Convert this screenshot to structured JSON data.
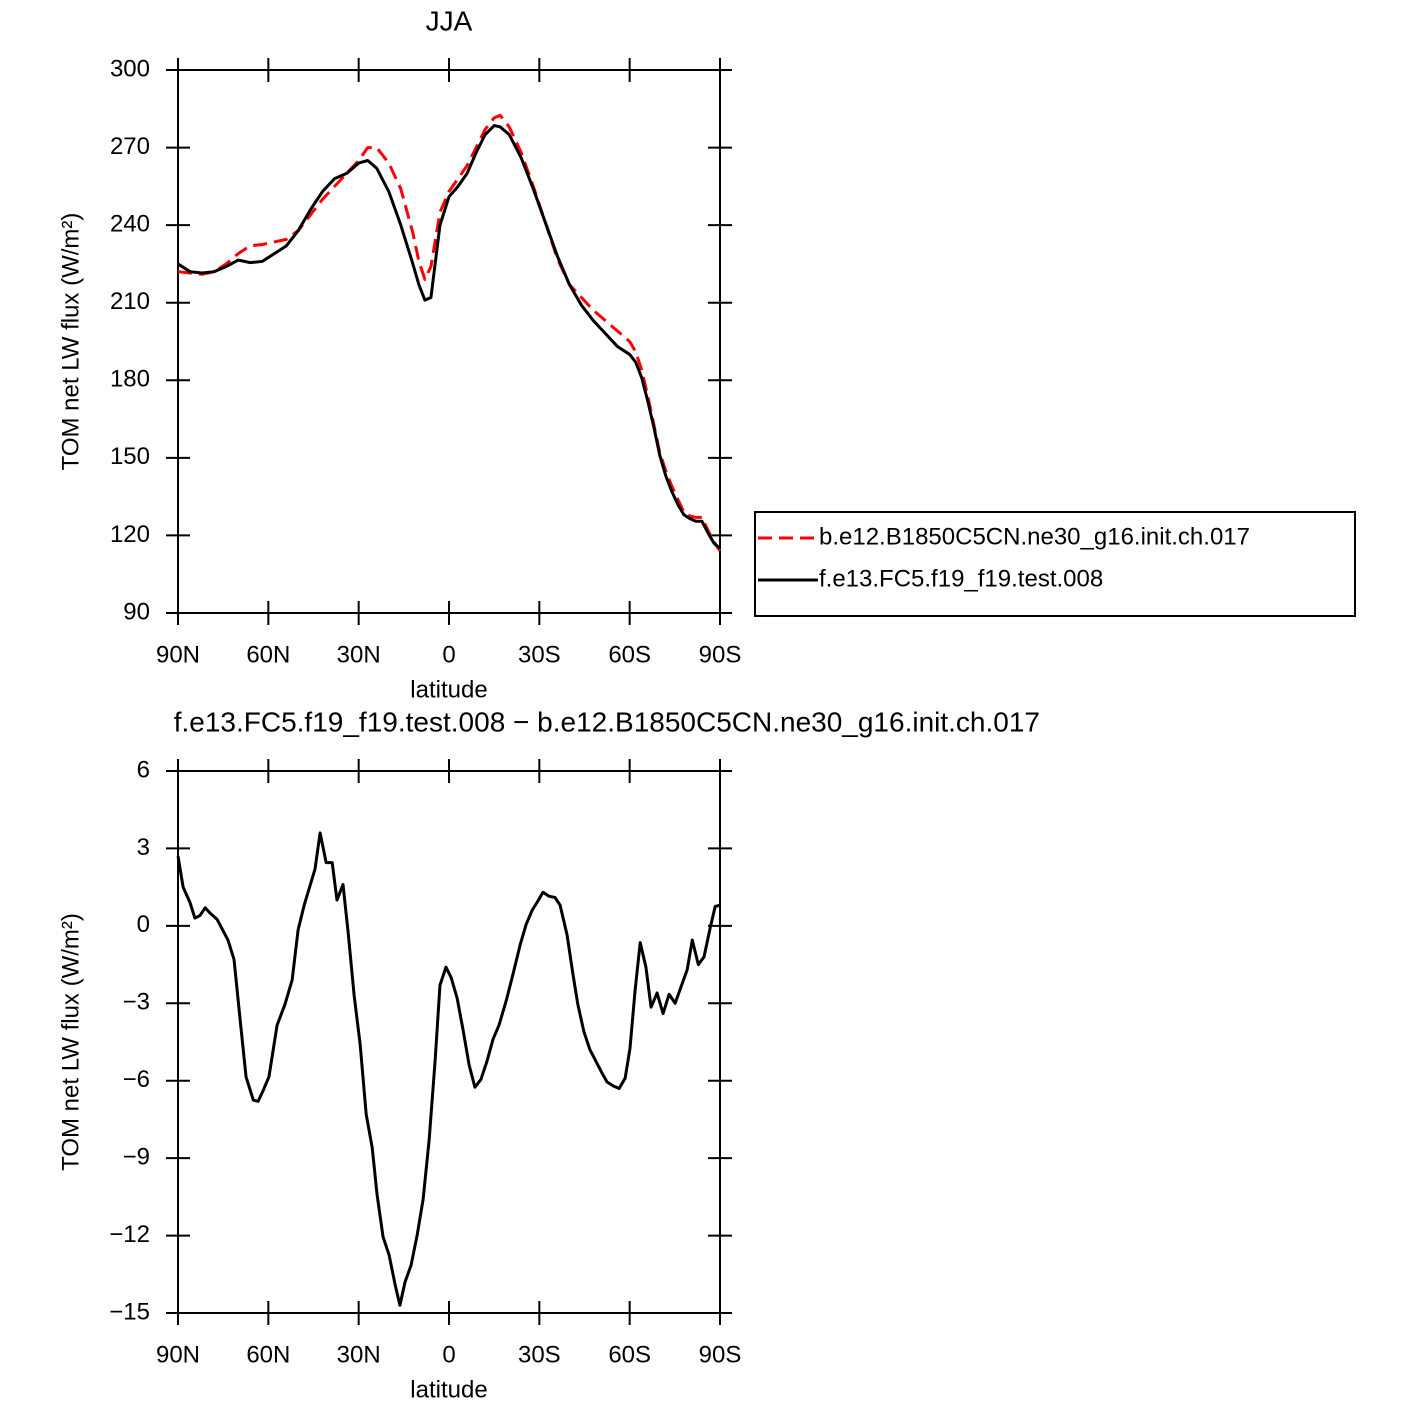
{
  "chart_data": [
    {
      "type": "line",
      "title": "JJA",
      "xlabel": "latitude",
      "ylabel": "TOM net LW flux (W/m²)",
      "x": [
        90,
        86,
        82,
        78,
        74,
        70,
        66,
        62,
        58,
        54,
        50,
        46,
        42,
        38,
        34,
        30,
        27,
        24,
        20,
        16,
        12,
        10,
        8,
        6,
        3,
        0,
        -3,
        -6,
        -9,
        -12,
        -15,
        -17,
        -20,
        -24,
        -28,
        -32,
        -36,
        -40,
        -44,
        -48,
        -52,
        -56,
        -60,
        -62,
        -64,
        -66,
        -68,
        -70,
        -72,
        -74,
        -76,
        -78,
        -80,
        -82,
        -84,
        -86,
        -88,
        -90
      ],
      "series": [
        {
          "name": "b.e12.B1850C5CN.ne30_g16.init.ch.017",
          "color": "#ff0000",
          "line_style": "dashed",
          "values": [
            222,
            221.5,
            221,
            222,
            225,
            229,
            232,
            232.5,
            233.5,
            234.5,
            238,
            244,
            250,
            255,
            260,
            265,
            270,
            270,
            264,
            254,
            237,
            226,
            219,
            224,
            245,
            253,
            258,
            263,
            270,
            277,
            281.5,
            282.5,
            278,
            268,
            255,
            241,
            227,
            217,
            212,
            207,
            203,
            199,
            195,
            191,
            184,
            174,
            163,
            152,
            145,
            139,
            134,
            129,
            127.5,
            127,
            127,
            122,
            117.5,
            114
          ]
        },
        {
          "name": "f.e13.FC5.f19_f19.test.008",
          "color": "#000000",
          "line_style": "solid",
          "values": [
            225,
            222,
            221.5,
            222,
            224,
            226.5,
            225.5,
            226,
            229,
            232,
            238,
            246,
            253,
            258,
            260,
            264,
            265,
            262,
            253,
            240,
            225,
            217,
            211,
            212,
            240,
            251,
            255,
            260,
            268,
            275,
            278.5,
            278,
            275,
            266,
            254,
            241,
            228,
            217,
            209,
            203,
            198,
            193,
            190,
            187,
            181,
            172,
            162,
            151,
            143,
            137,
            132,
            128,
            126.5,
            125.5,
            125.5,
            121,
            117,
            115
          ]
        }
      ],
      "xlim": [
        90,
        -90
      ],
      "xticks": [
        {
          "value": 90,
          "label": "90N"
        },
        {
          "value": 60,
          "label": "60N"
        },
        {
          "value": 30,
          "label": "30N"
        },
        0,
        {
          "value": -30,
          "label": "30S"
        },
        {
          "value": -60,
          "label": "60S"
        },
        {
          "value": -90,
          "label": "90S"
        }
      ],
      "ylim": [
        90,
        300
      ],
      "yticks": [
        90,
        120,
        150,
        180,
        210,
        240,
        270,
        300
      ],
      "legend": "right"
    },
    {
      "type": "line",
      "title": "f.e13.FC5.f19_f19.test.008 − b.e12.B1850C5CN.ne30_g16.init.ch.017",
      "xlabel": "latitude",
      "ylabel": "TOM net LW flux (W/m²)",
      "x": [
        90,
        88.3,
        86,
        84.4,
        82.7,
        81,
        79.4,
        77,
        73.4,
        71.4,
        69.4,
        67.4,
        65,
        63.4,
        61.8,
        59.8,
        57.1,
        54.5,
        52.1,
        50.1,
        48.1,
        44.5,
        42.8,
        40.8,
        38.8,
        37.2,
        35.2,
        33.5,
        31.5,
        29.5,
        27.5,
        25.5,
        23.9,
        21.9,
        19.9,
        17.9,
        16.3,
        14.6,
        12.6,
        10.6,
        8.6,
        6.6,
        4.6,
        3,
        1,
        -0.7,
        -2.7,
        -4.7,
        -6.7,
        -8.6,
        -10.6,
        -12.6,
        -14.6,
        -16.6,
        -19,
        -21.3,
        -23.6,
        -25.6,
        -27.6,
        -29.2,
        -31.2,
        -33.2,
        -35.2,
        -36.9,
        -39.2,
        -41.2,
        -42.8,
        -44.8,
        -46.8,
        -48.8,
        -50.8,
        -52.5,
        -54.5,
        -56.5,
        -58.5,
        -60.1,
        -61.8,
        -63.5,
        -65.4,
        -67.1,
        -69.1,
        -71.1,
        -73.1,
        -75.1,
        -77.1,
        -79.1,
        -80.8,
        -82.8,
        -84.7,
        -86.7,
        -88.4,
        -90
      ],
      "series": [
        {
          "color": "#000000",
          "line_style": "solid",
          "values": [
            2.7,
            1.5,
            0.9,
            0.3,
            0.4,
            0.7,
            0.5,
            0.25,
            -0.55,
            -1.3,
            -3.6,
            -5.85,
            -6.75,
            -6.8,
            -6.4,
            -5.85,
            -3.85,
            -3.05,
            -2.1,
            -0.15,
            0.8,
            2.2,
            3.6,
            2.45,
            2.45,
            1,
            1.6,
            -0.25,
            -2.7,
            -4.6,
            -7.3,
            -8.6,
            -10.4,
            -12.05,
            -12.75,
            -13.9,
            -14.7,
            -13.8,
            -13.15,
            -12,
            -10.6,
            -8.3,
            -5.2,
            -2.3,
            -1.6,
            -2,
            -2.8,
            -4.05,
            -5.4,
            -6.25,
            -5.95,
            -5.25,
            -4.4,
            -3.85,
            -2.9,
            -1.85,
            -0.75,
            0.05,
            0.6,
            0.9,
            1.3,
            1.15,
            1.1,
            0.8,
            -0.35,
            -1.9,
            -3.05,
            -4.1,
            -4.8,
            -5.25,
            -5.7,
            -6.05,
            -6.2,
            -6.3,
            -5.9,
            -4.75,
            -2.5,
            -0.65,
            -1.6,
            -3.15,
            -2.6,
            -3.4,
            -2.65,
            -3,
            -2.35,
            -1.7,
            -0.55,
            -1.5,
            -1.2,
            -0.1,
            0.75,
            0.8
          ]
        }
      ],
      "xlim": [
        90,
        -90
      ],
      "xticks": [
        {
          "value": 90,
          "label": "90N"
        },
        {
          "value": 60,
          "label": "60N"
        },
        {
          "value": 30,
          "label": "30N"
        },
        0,
        {
          "value": -30,
          "label": "30S"
        },
        {
          "value": -60,
          "label": "60S"
        },
        {
          "value": -90,
          "label": "90S"
        }
      ],
      "ylim": [
        -15,
        6
      ],
      "yticks": [
        {
          "value": -15,
          "label": "−15"
        },
        {
          "value": -12,
          "label": "−12"
        },
        {
          "value": -9,
          "label": "−9"
        },
        {
          "value": -6,
          "label": "−6"
        },
        {
          "value": -3,
          "label": "−3"
        },
        0,
        3,
        6
      ]
    }
  ]
}
